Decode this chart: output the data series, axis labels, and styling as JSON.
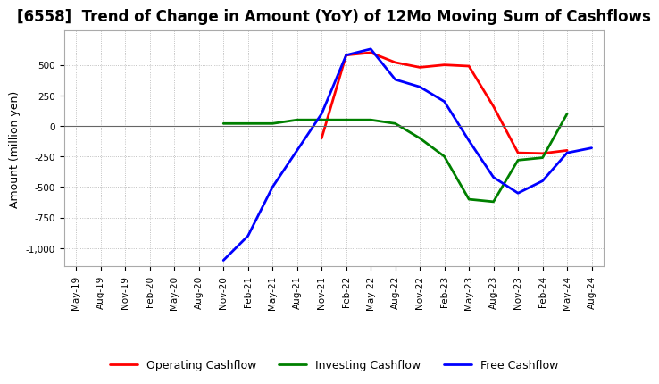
{
  "title": "[6558]  Trend of Change in Amount (YoY) of 12Mo Moving Sum of Cashflows",
  "ylabel": "Amount (million yen)",
  "x_labels": [
    "May-19",
    "Aug-19",
    "Nov-19",
    "Feb-20",
    "May-20",
    "Aug-20",
    "Nov-20",
    "Feb-21",
    "May-21",
    "Aug-21",
    "Nov-21",
    "Feb-22",
    "May-22",
    "Aug-22",
    "Nov-22",
    "Feb-23",
    "May-23",
    "Aug-23",
    "Nov-23",
    "Feb-24",
    "May-24",
    "Aug-24"
  ],
  "operating_cashflow": [
    null,
    null,
    null,
    null,
    null,
    null,
    null,
    null,
    null,
    null,
    -100,
    580,
    600,
    520,
    480,
    500,
    490,
    160,
    -220,
    -225,
    -200,
    null
  ],
  "investing_cashflow": [
    null,
    null,
    null,
    null,
    null,
    null,
    20,
    20,
    20,
    50,
    50,
    50,
    50,
    20,
    -100,
    -250,
    -600,
    -620,
    -280,
    -260,
    100,
    null
  ],
  "free_cashflow": [
    null,
    null,
    null,
    null,
    null,
    null,
    -1100,
    -900,
    -500,
    -200,
    100,
    580,
    630,
    380,
    320,
    200,
    -120,
    -420,
    -550,
    -450,
    -220,
    -180
  ],
  "operating_color": "#ff0000",
  "investing_color": "#008000",
  "free_color": "#0000ff",
  "ylim_min": -1150,
  "ylim_max": 780,
  "yticks": [
    500,
    250,
    0,
    -250,
    -500,
    -750,
    -1000
  ],
  "background_color": "#ffffff",
  "grid_color": "#b0b0b0",
  "title_fontsize": 12,
  "axis_fontsize": 9,
  "tick_fontsize": 7.5
}
